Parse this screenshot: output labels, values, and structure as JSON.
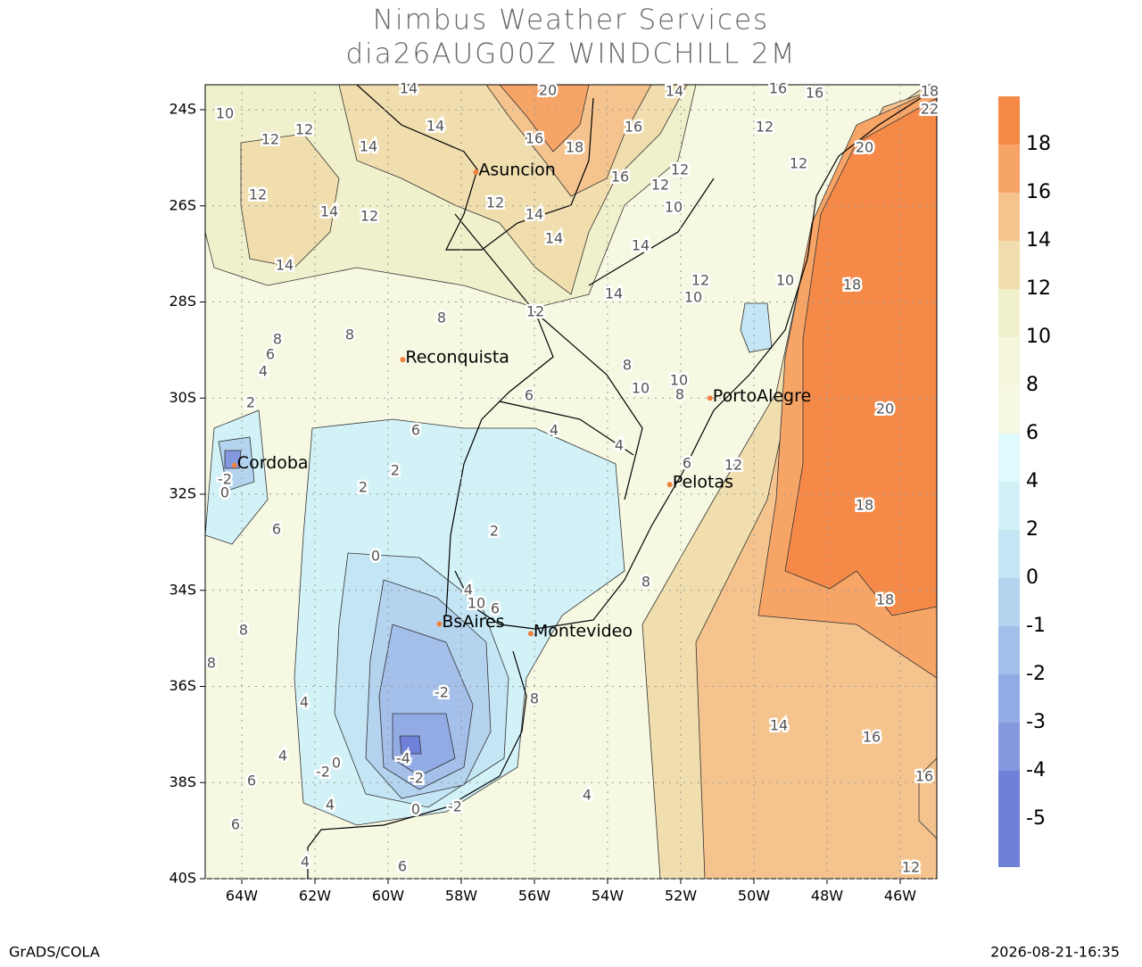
{
  "chart_data": {
    "type": "contour-map",
    "title": "Nimbus Weather Services",
    "subtitle": "dia26AUG00Z WINDCHILL 2M",
    "xlim": [
      -65,
      -45
    ],
    "ylim": [
      -40,
      -23.48
    ],
    "xticks": [
      {
        "value": -64,
        "label": "64W"
      },
      {
        "value": -62,
        "label": "62W"
      },
      {
        "value": -60,
        "label": "60W"
      },
      {
        "value": -58,
        "label": "58W"
      },
      {
        "value": -56,
        "label": "56W"
      },
      {
        "value": -54,
        "label": "54W"
      },
      {
        "value": -52,
        "label": "52W"
      },
      {
        "value": -50,
        "label": "50W"
      },
      {
        "value": -48,
        "label": "48W"
      },
      {
        "value": -46,
        "label": "46W"
      }
    ],
    "yticks": [
      {
        "value": -24,
        "label": "24S"
      },
      {
        "value": -26,
        "label": "26S"
      },
      {
        "value": -28,
        "label": "28S"
      },
      {
        "value": -30,
        "label": "30S"
      },
      {
        "value": -32,
        "label": "32S"
      },
      {
        "value": -34,
        "label": "34S"
      },
      {
        "value": -36,
        "label": "36S"
      },
      {
        "value": -38,
        "label": "38S"
      },
      {
        "value": -40,
        "label": "40S"
      }
    ],
    "grid": true,
    "cities": [
      {
        "name": "Asuncion",
        "lon": -57.6,
        "lat": -25.3
      },
      {
        "name": "Reconquista",
        "lon": -59.6,
        "lat": -29.2
      },
      {
        "name": "PortoAlegre",
        "lon": -51.2,
        "lat": -30.0
      },
      {
        "name": "Cordoba",
        "lon": -64.2,
        "lat": -31.4
      },
      {
        "name": "Pelotas",
        "lon": -52.3,
        "lat": -31.8
      },
      {
        "name": "BsAires",
        "lon": -58.6,
        "lat": -34.7
      },
      {
        "name": "Montevideo",
        "lon": -56.1,
        "lat": -34.9
      }
    ],
    "city_color": "#f08040",
    "legend": {
      "levels": [
        18,
        16,
        14,
        12,
        10,
        8,
        6,
        4,
        2,
        0,
        -1,
        -2,
        -3,
        -4,
        -5
      ],
      "colors": [
        "#f58a48",
        "#f7a467",
        "#f5c48e",
        "#f0deae",
        "#f0f0cc",
        "#f6f6dc",
        "#f7f8e2",
        "#dff9fc",
        "#d2f2f8",
        "#c3e5f4",
        "#b3d3ee",
        "#a3bfea",
        "#93abe5",
        "#8398df",
        "#6e80d8",
        "#6e80d8"
      ]
    },
    "contour_labels": [
      14,
      20,
      14,
      16,
      16,
      18,
      22,
      10,
      12,
      12,
      14,
      14,
      16,
      18,
      16,
      12,
      12,
      14,
      12,
      12,
      14,
      16,
      12,
      12,
      12,
      20,
      10,
      14,
      14,
      14,
      14,
      12,
      10,
      18,
      10,
      12,
      8,
      8,
      8,
      6,
      4,
      2,
      8,
      10,
      10,
      8,
      6,
      20,
      6,
      4,
      4,
      2,
      2,
      -2,
      0,
      12,
      6,
      18,
      6,
      2,
      0,
      8,
      4,
      10,
      6,
      18,
      8,
      8,
      -2,
      8,
      4,
      14,
      16,
      4,
      -4,
      0,
      -2,
      -2,
      6,
      16,
      4,
      4,
      -2,
      0,
      6,
      4,
      6,
      12
    ],
    "footer_left": "GrADS/COLA",
    "footer_right": "2026-08-21-16:35"
  }
}
